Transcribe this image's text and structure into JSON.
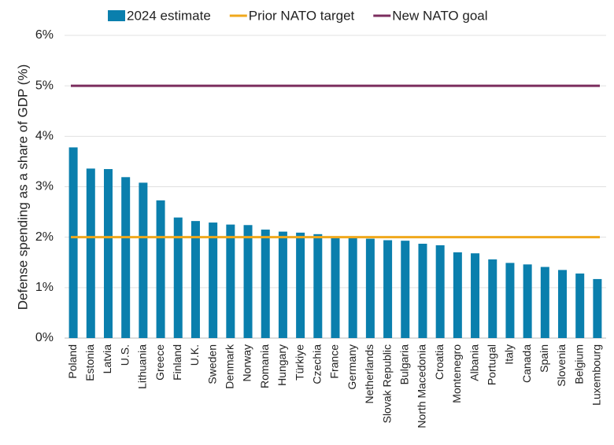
{
  "chart_data": {
    "type": "bar",
    "y_label": "Defense spending as a share of GDP (%)",
    "categories": [
      "Poland",
      "Estonia",
      "Latvia",
      "U.S.",
      "Lithuania",
      "Greece",
      "Finland",
      "U.K.",
      "Sweden",
      "Denmark",
      "Norway",
      "Romania",
      "Hungary",
      "Türkiye",
      "Czechia",
      "France",
      "Germany",
      "Netherlands",
      "Slovak Republic",
      "Bulgaria",
      "North Macedonia",
      "Croatia",
      "Montenegro",
      "Albania",
      "Portugal",
      "Italy",
      "Canada",
      "Spain",
      "Slovenia",
      "Belgium",
      "Luxembourg"
    ],
    "series": [
      {
        "name": "2024 estimate",
        "color": "#0a7fad",
        "values": [
          3.78,
          3.36,
          3.35,
          3.19,
          3.08,
          2.73,
          2.39,
          2.32,
          2.29,
          2.25,
          2.24,
          2.15,
          2.11,
          2.09,
          2.06,
          1.98,
          1.98,
          1.97,
          1.94,
          1.93,
          1.87,
          1.84,
          1.7,
          1.68,
          1.56,
          1.49,
          1.46,
          1.41,
          1.35,
          1.28,
          1.17
        ]
      }
    ],
    "reference_lines": [
      {
        "name": "Prior NATO target",
        "color": "#f0a81c",
        "value": 2
      },
      {
        "name": "New NATO goal",
        "color": "#7b2d5e",
        "value": 5
      }
    ],
    "ylim": [
      0,
      6
    ],
    "yticks": [
      {
        "value": 0,
        "label": "0%"
      },
      {
        "value": 1,
        "label": "1%"
      },
      {
        "value": 2,
        "label": "2%"
      },
      {
        "value": 3,
        "label": "3%"
      },
      {
        "value": 4,
        "label": "4%"
      },
      {
        "value": 5,
        "label": "5%"
      },
      {
        "value": 6,
        "label": "6%"
      }
    ],
    "grid": true
  }
}
